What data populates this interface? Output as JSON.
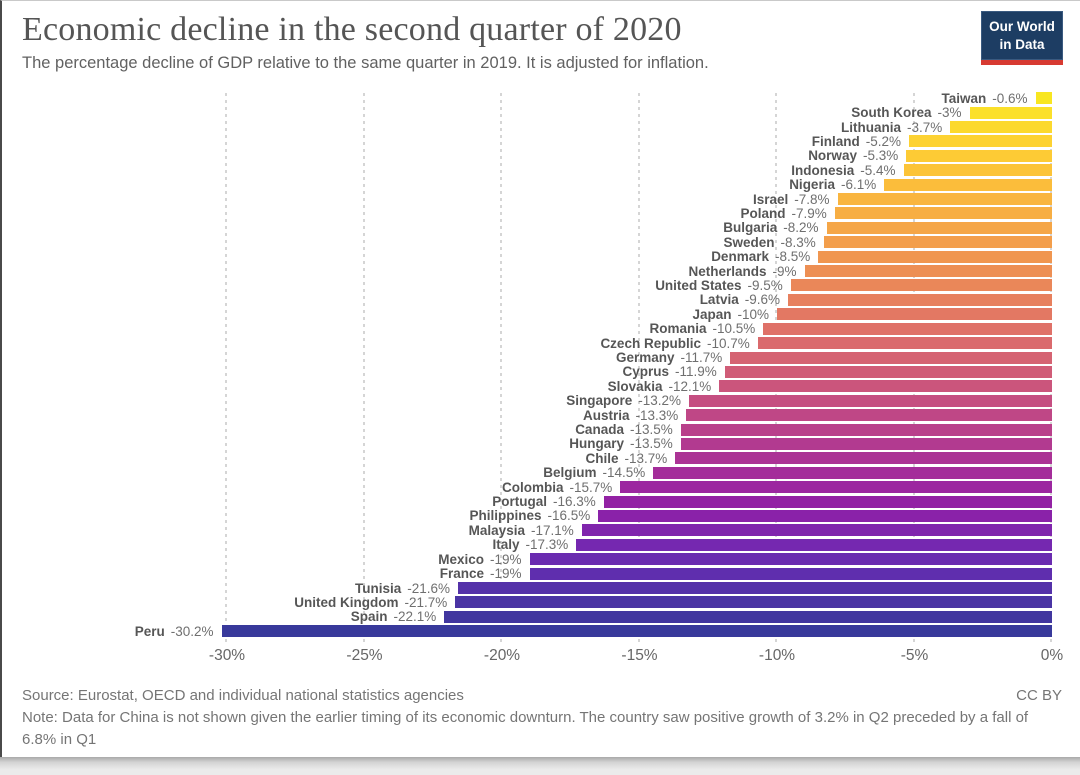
{
  "header": {
    "title": "Economic decline in the second quarter of 2020",
    "subtitle": "The percentage decline of GDP relative to the same quarter in 2019. It is adjusted for inflation.",
    "logo": {
      "line1": "Our World",
      "line2": "in Data",
      "bg_color": "#1d3d63",
      "stripe_color": "#d73a31"
    }
  },
  "chart_data": {
    "type": "bar",
    "orientation": "horizontal",
    "title": "Economic decline in the second quarter of 2020",
    "xlabel": "",
    "ylabel": "",
    "xlim": [
      -30.5,
      0
    ],
    "grid": "vertical-dashed",
    "x_ticks": [
      "-30%",
      "-25%",
      "-20%",
      "-15%",
      "-10%",
      "-5%",
      "0%"
    ],
    "series": [
      {
        "country": "Taiwan",
        "value": -0.6,
        "label": "-0.6%",
        "color": "#f8e621"
      },
      {
        "country": "South Korea",
        "value": -3,
        "label": "-3%",
        "color": "#fbe02a"
      },
      {
        "country": "Lithuania",
        "value": -3.7,
        "label": "-3.7%",
        "color": "#fcd92e"
      },
      {
        "country": "Finland",
        "value": -5.2,
        "label": "-5.2%",
        "color": "#fdd232"
      },
      {
        "country": "Norway",
        "value": -5.3,
        "label": "-5.3%",
        "color": "#fdcb35"
      },
      {
        "country": "Indonesia",
        "value": -5.4,
        "label": "-5.4%",
        "color": "#fcc438"
      },
      {
        "country": "Nigeria",
        "value": -6.1,
        "label": "-6.1%",
        "color": "#fbbd3b"
      },
      {
        "country": "Israel",
        "value": -7.8,
        "label": "-7.8%",
        "color": "#f9b53f"
      },
      {
        "country": "Poland",
        "value": -7.9,
        "label": "-7.9%",
        "color": "#f7ae43"
      },
      {
        "country": "Bulgaria",
        "value": -8.2,
        "label": "-8.2%",
        "color": "#f5a647"
      },
      {
        "country": "Sweden",
        "value": -8.3,
        "label": "-8.3%",
        "color": "#f39e4b"
      },
      {
        "country": "Denmark",
        "value": -8.5,
        "label": "-8.5%",
        "color": "#f09650"
      },
      {
        "country": "Netherlands",
        "value": -9,
        "label": "-9%",
        "color": "#ed8f54"
      },
      {
        "country": "United States",
        "value": -9.5,
        "label": "-9.5%",
        "color": "#ea8759"
      },
      {
        "country": "Latvia",
        "value": -9.6,
        "label": "-9.6%",
        "color": "#e7805e"
      },
      {
        "country": "Japan",
        "value": -10,
        "label": "-10%",
        "color": "#e37863"
      },
      {
        "country": "Romania",
        "value": -10.5,
        "label": "-10.5%",
        "color": "#df7168"
      },
      {
        "country": "Czech Republic",
        "value": -10.7,
        "label": "-10.7%",
        "color": "#da6a6d"
      },
      {
        "country": "Germany",
        "value": -11.7,
        "label": "-11.7%",
        "color": "#d56372"
      },
      {
        "country": "Cyprus",
        "value": -11.9,
        "label": "-11.9%",
        "color": "#d05c77"
      },
      {
        "country": "Slovakia",
        "value": -12.1,
        "label": "-12.1%",
        "color": "#cb557c"
      },
      {
        "country": "Singapore",
        "value": -13.2,
        "label": "-13.2%",
        "color": "#c54e81"
      },
      {
        "country": "Austria",
        "value": -13.3,
        "label": "-13.3%",
        "color": "#bf4786"
      },
      {
        "country": "Canada",
        "value": -13.5,
        "label": "-13.5%",
        "color": "#b9408b"
      },
      {
        "country": "Hungary",
        "value": -13.5,
        "label": "-13.5%",
        "color": "#b23a90"
      },
      {
        "country": "Chile",
        "value": -13.7,
        "label": "-13.7%",
        "color": "#ab3395"
      },
      {
        "country": "Belgium",
        "value": -14.5,
        "label": "-14.5%",
        "color": "#a42d9a"
      },
      {
        "country": "Colombia",
        "value": -15.7,
        "label": "-15.7%",
        "color": "#9c27a0"
      },
      {
        "country": "Portugal",
        "value": -16.3,
        "label": "-16.3%",
        "color": "#9322a4"
      },
      {
        "country": "Philippines",
        "value": -16.5,
        "label": "-16.5%",
        "color": "#8a22a9"
      },
      {
        "country": "Malaysia",
        "value": -17.1,
        "label": "-17.1%",
        "color": "#8025ad"
      },
      {
        "country": "Italy",
        "value": -17.3,
        "label": "-17.3%",
        "color": "#7528b0"
      },
      {
        "country": "Mexico",
        "value": -19,
        "label": "-19%",
        "color": "#6a2bb0"
      },
      {
        "country": "France",
        "value": -19,
        "label": "-19%",
        "color": "#5f2eae"
      },
      {
        "country": "Tunisia",
        "value": -21.6,
        "label": "-21.6%",
        "color": "#5431a9"
      },
      {
        "country": "United Kingdom",
        "value": -21.7,
        "label": "-21.7%",
        "color": "#4a34a4"
      },
      {
        "country": "Spain",
        "value": -22.1,
        "label": "-22.1%",
        "color": "#41369f"
      },
      {
        "country": "Peru",
        "value": -30.2,
        "label": "-30.2%",
        "color": "#38399b"
      }
    ]
  },
  "footer": {
    "source": "Source: Eurostat, OECD and individual national statistics agencies",
    "license": "CC BY",
    "note": "Note: Data for China is not shown given the earlier timing of its economic downturn. The country saw positive growth of 3.2% in Q2 preceded by a fall of 6.8% in Q1"
  }
}
